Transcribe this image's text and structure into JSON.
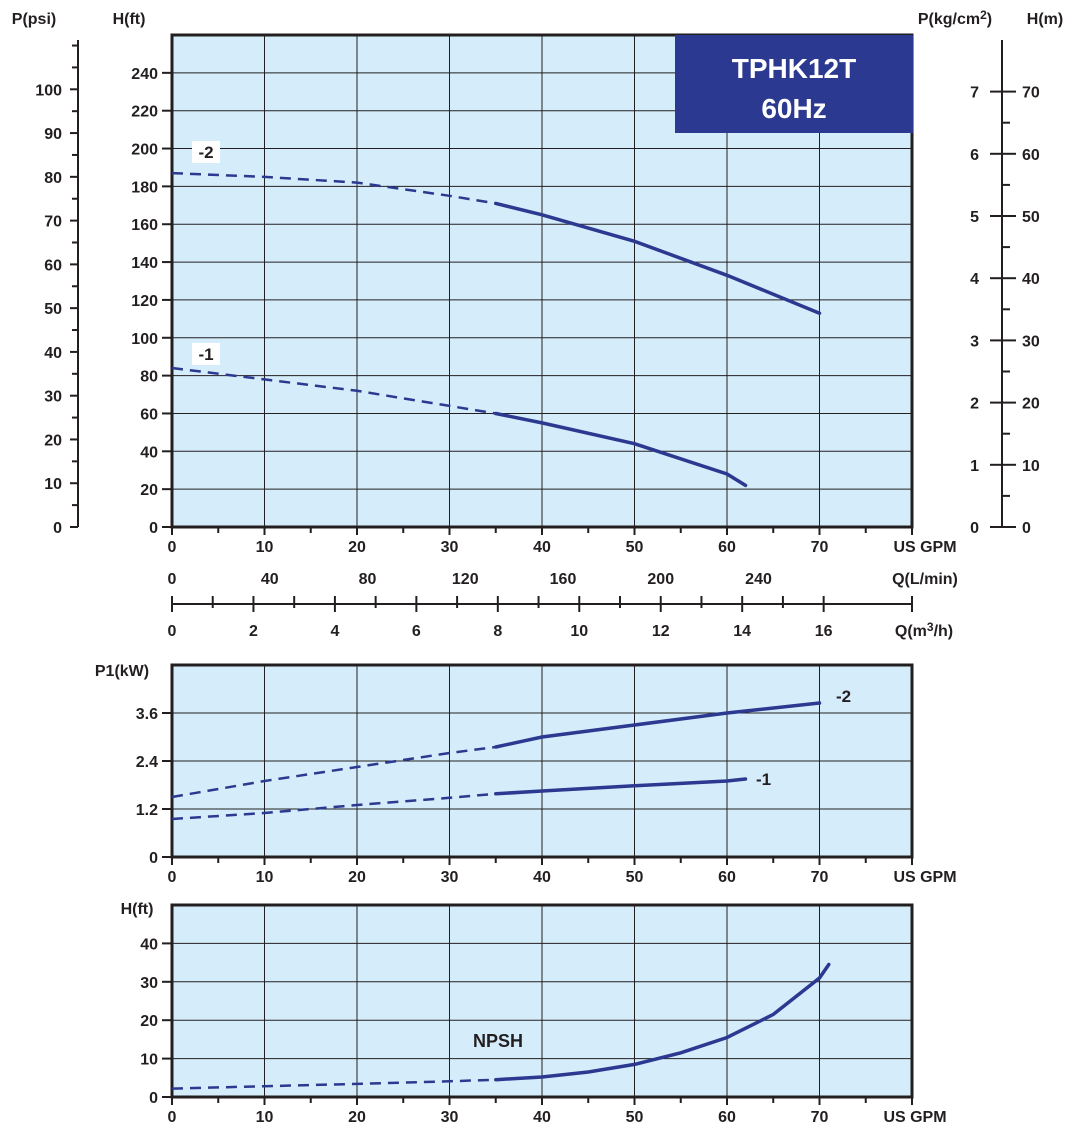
{
  "badge": {
    "model": "TPHK12T",
    "frequency": "60Hz"
  },
  "colors": {
    "plot_bg": "#d5ecfa",
    "curve": "#2b3990",
    "badge_bg": "#2b3990",
    "badge_text": "#ffffff",
    "grid": "#231f20"
  },
  "chart_data": [
    {
      "type": "line",
      "name": "head-curve",
      "xlabel": "US GPM",
      "ylabel": "H(ft)",
      "xlim": [
        0,
        80
      ],
      "ylim": [
        0,
        260
      ],
      "x_ticks": [
        0,
        10,
        20,
        30,
        40,
        50,
        60,
        70
      ],
      "y_ticks": [
        0,
        20,
        40,
        60,
        80,
        100,
        120,
        140,
        160,
        180,
        200,
        220,
        240
      ],
      "grid": true,
      "series": [
        {
          "name": "-2",
          "dashed_until": 35,
          "x": [
            0,
            10,
            20,
            30,
            35,
            40,
            50,
            60,
            70
          ],
          "y": [
            187,
            185,
            182,
            175,
            171,
            165,
            151,
            133,
            113
          ]
        },
        {
          "name": "-1",
          "dashed_until": 35,
          "x": [
            0,
            10,
            20,
            30,
            35,
            40,
            50,
            60,
            62
          ],
          "y": [
            84,
            78,
            72,
            64,
            60,
            55,
            44,
            28,
            22
          ]
        }
      ],
      "secondary_axes": [
        {
          "label": "P(psi)",
          "ticks": [
            0,
            10,
            20,
            30,
            40,
            50,
            60,
            70,
            80,
            90,
            100
          ]
        },
        {
          "label": "P(kg/cm",
          "label_sup": "2",
          "label_end": ")",
          "ticks": [
            0,
            1,
            2,
            3,
            4,
            5,
            6,
            7
          ]
        },
        {
          "label": "H(m)",
          "ticks": [
            0,
            10,
            20,
            30,
            40,
            50,
            60,
            70
          ]
        },
        {
          "label": "Q(L/min)",
          "ticks": [
            0,
            40,
            80,
            120,
            160,
            200,
            240
          ]
        },
        {
          "label": "Q(m",
          "label_sup": "3",
          "label_end": "/h)",
          "ticks": [
            0,
            2,
            4,
            6,
            8,
            10,
            12,
            14,
            16
          ]
        }
      ]
    },
    {
      "type": "line",
      "name": "power-curve",
      "xlabel": "US GPM",
      "ylabel": "P1(kW)",
      "xlim": [
        0,
        80
      ],
      "ylim": [
        0,
        4.8
      ],
      "x_ticks": [
        0,
        10,
        20,
        30,
        40,
        50,
        60,
        70
      ],
      "y_ticks": [
        0,
        1.2,
        2.4,
        3.6
      ],
      "grid": true,
      "series": [
        {
          "name": "-2",
          "dashed_until": 35,
          "x": [
            0,
            10,
            20,
            30,
            35,
            40,
            50,
            60,
            70
          ],
          "y": [
            1.5,
            1.9,
            2.25,
            2.6,
            2.75,
            3.0,
            3.3,
            3.6,
            3.85
          ]
        },
        {
          "name": "-1",
          "dashed_until": 35,
          "x": [
            0,
            10,
            20,
            30,
            35,
            40,
            50,
            60,
            62
          ],
          "y": [
            0.95,
            1.1,
            1.3,
            1.48,
            1.58,
            1.65,
            1.78,
            1.9,
            1.95
          ]
        }
      ]
    },
    {
      "type": "line",
      "name": "npsh-curve",
      "xlabel": "US GPM",
      "ylabel": "H(ft)",
      "xlim": [
        0,
        80
      ],
      "ylim": [
        0,
        50
      ],
      "x_ticks": [
        0,
        10,
        20,
        30,
        40,
        50,
        60,
        70
      ],
      "y_ticks": [
        0,
        10,
        20,
        30,
        40
      ],
      "grid": true,
      "series": [
        {
          "name": "NPSH",
          "dashed_until": 35,
          "x": [
            0,
            10,
            20,
            30,
            35,
            40,
            45,
            50,
            55,
            60,
            65,
            70,
            71
          ],
          "y": [
            2.2,
            2.8,
            3.4,
            4.1,
            4.5,
            5.2,
            6.5,
            8.5,
            11.5,
            15.5,
            21.5,
            31.0,
            34.5
          ]
        }
      ]
    }
  ]
}
